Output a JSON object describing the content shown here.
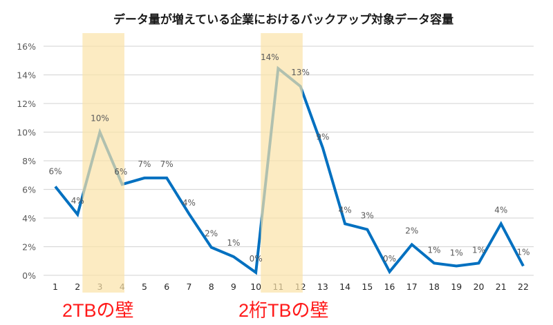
{
  "chart_data": {
    "type": "line",
    "title": "データ量が増えている企業におけるバックアップ対象データ容量",
    "xlabel": "",
    "ylabel": "",
    "categories": [
      "1",
      "2",
      "3",
      "4",
      "5",
      "6",
      "7",
      "8",
      "9",
      "10",
      "11",
      "12",
      "13",
      "14",
      "15",
      "16",
      "17",
      "18",
      "19",
      "20",
      "21",
      "22"
    ],
    "series": [
      {
        "name": "バックアップ対象データ容量",
        "values": [
          6.2,
          4.25,
          10.0,
          6.35,
          6.8,
          6.8,
          4.3,
          1.95,
          1.3,
          0.2,
          14.45,
          13.2,
          8.9,
          3.6,
          3.2,
          0.25,
          2.15,
          0.85,
          0.65,
          0.85,
          3.6,
          0.65
        ],
        "data_labels": [
          "6%",
          "4%",
          "10%",
          "6%",
          "7%",
          "7%",
          "4%",
          "2%",
          "1%",
          "0%",
          "14%",
          "13%",
          "9%",
          "4%",
          "3%",
          "0%",
          "2%",
          "1%",
          "1%",
          "1%",
          "4%",
          "1%"
        ],
        "color": "#0070C0"
      }
    ],
    "ylim": [
      0,
      16
    ],
    "yticks": [
      0,
      2,
      4,
      6,
      8,
      10,
      12,
      14,
      16
    ],
    "ytick_labels": [
      "0%",
      "2%",
      "4%",
      "6%",
      "8%",
      "10%",
      "12%",
      "14%",
      "16%"
    ],
    "grid": true,
    "legend": "none",
    "highlights": [
      {
        "from": "3",
        "to": "4",
        "label": "2TBの壁",
        "color": "#FBE3A8"
      },
      {
        "from": "11",
        "to": "12",
        "label": "2桁TBの壁",
        "color": "#FBE3A8"
      }
    ],
    "annotation_color": "#FF1A1A",
    "label_color": "#595959"
  }
}
